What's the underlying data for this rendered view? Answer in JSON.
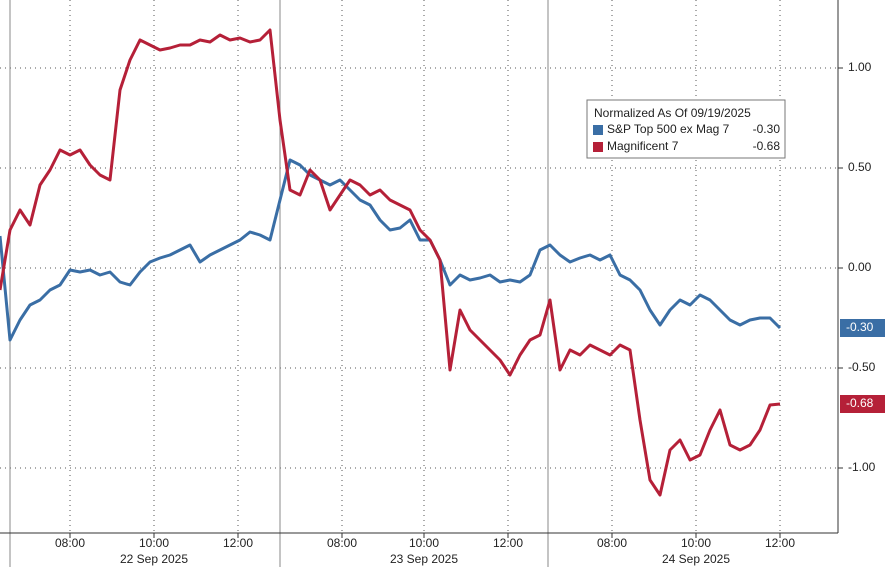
{
  "chart_data": {
    "type": "line",
    "xlim": [
      0,
      83.8
    ],
    "ylim": [
      -1.325,
      1.34
    ],
    "grid": true,
    "yticks": [
      {
        "value": 1,
        "label": "1.00"
      },
      {
        "value": 0.5,
        "label": "0.50"
      },
      {
        "value": 0,
        "label": "0.00"
      },
      {
        "value": -0.5,
        "label": "-0.50"
      },
      {
        "value": -1,
        "label": "-1.00"
      }
    ],
    "xticks": [
      {
        "value": 7,
        "label": "08:00"
      },
      {
        "value": 15.4,
        "label": "10:00"
      },
      {
        "value": 23.8,
        "label": "12:00"
      },
      {
        "value": 34.2,
        "label": "08:00"
      },
      {
        "value": 42.4,
        "label": "10:00"
      },
      {
        "value": 50.8,
        "label": "12:00"
      },
      {
        "value": 61.2,
        "label": "08:00"
      },
      {
        "value": 69.6,
        "label": "10:00"
      },
      {
        "value": 78,
        "label": "12:00"
      }
    ],
    "date_labels": [
      {
        "value": 15.4,
        "label": "22 Sep 2025"
      },
      {
        "value": 42.4,
        "label": "23 Sep 2025"
      },
      {
        "value": 69.6,
        "label": "24 Sep 2025"
      }
    ],
    "session_breaks": [
      1,
      28,
      54.8
    ],
    "legend": {
      "title": "Normalized As Of 09/19/2025",
      "position": "upper right"
    },
    "series": [
      {
        "name": "S&P Top 500 ex Mag 7",
        "color": "#3a6ea5",
        "last_label": "-0.30",
        "values": [
          0.16,
          -0.36,
          -0.26,
          -0.185,
          -0.16,
          -0.11,
          -0.085,
          -0.01,
          -0.02,
          -0.01,
          -0.035,
          -0.02,
          -0.07,
          -0.085,
          -0.02,
          0.03,
          0.05,
          0.065,
          0.09,
          0.115,
          0.03,
          0.065,
          0.09,
          0.115,
          0.14,
          0.18,
          0.165,
          0.14,
          0.34,
          0.54,
          0.515,
          0.465,
          0.44,
          0.415,
          0.44,
          0.39,
          0.34,
          0.315,
          0.24,
          0.19,
          0.2,
          0.24,
          0.14,
          0.14,
          0.04,
          -0.085,
          -0.035,
          -0.06,
          -0.05,
          -0.035,
          -0.07,
          -0.06,
          -0.07,
          -0.035,
          0.09,
          0.115,
          0.065,
          0.03,
          0.05,
          0.065,
          0.04,
          0.065,
          -0.035,
          -0.06,
          -0.11,
          -0.21,
          -0.285,
          -0.21,
          -0.16,
          -0.185,
          -0.135,
          -0.16,
          -0.21,
          -0.26,
          -0.285,
          -0.26,
          -0.25,
          -0.25,
          -0.3
        ]
      },
      {
        "name": "Magnificent 7",
        "color": "#b52038",
        "last_label": "-0.68",
        "values": [
          -0.11,
          0.19,
          0.29,
          0.215,
          0.415,
          0.49,
          0.59,
          0.565,
          0.59,
          0.515,
          0.465,
          0.44,
          0.89,
          1.04,
          1.14,
          1.115,
          1.09,
          1.1,
          1.115,
          1.115,
          1.14,
          1.13,
          1.165,
          1.14,
          1.15,
          1.13,
          1.14,
          1.19,
          0.74,
          0.39,
          0.365,
          0.49,
          0.44,
          0.29,
          0.365,
          0.44,
          0.415,
          0.365,
          0.39,
          0.34,
          0.315,
          0.29,
          0.19,
          0.14,
          0.04,
          -0.51,
          -0.21,
          -0.31,
          -0.36,
          -0.41,
          -0.46,
          -0.535,
          -0.435,
          -0.36,
          -0.335,
          -0.16,
          -0.51,
          -0.41,
          -0.435,
          -0.385,
          -0.41,
          -0.435,
          -0.385,
          -0.41,
          -0.76,
          -1.06,
          -1.135,
          -0.91,
          -0.86,
          -0.96,
          -0.935,
          -0.81,
          -0.71,
          -0.885,
          -0.91,
          -0.885,
          -0.81,
          -0.685,
          -0.68
        ]
      }
    ]
  }
}
